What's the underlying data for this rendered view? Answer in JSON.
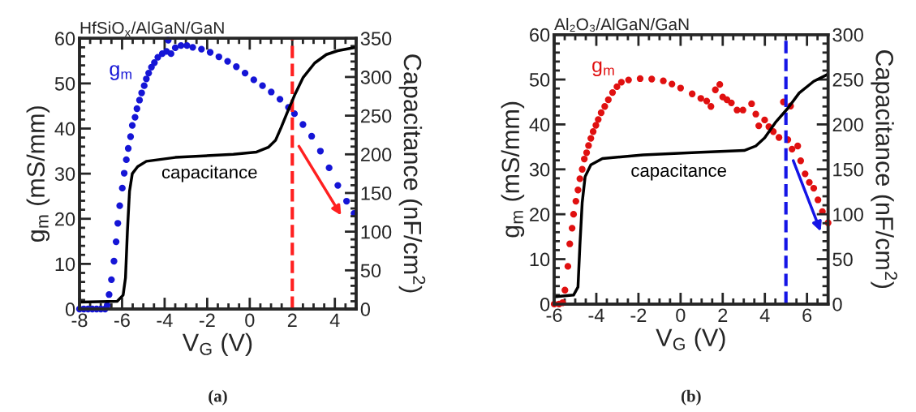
{
  "chart_data": [
    {
      "type": "scatter",
      "title": "HfSiO$_{x}$/AlGaN/GaN",
      "xlabel": "V$_{G}$ (V)",
      "ylabel": "g$_{m}$ (mS/mm)",
      "y2label": "Capacitance (nF/cm$^{2}$)",
      "xlim": [
        -8,
        5
      ],
      "xticks": [
        -8,
        -6,
        -4,
        -2,
        0,
        2,
        4
      ],
      "ylim": [
        0,
        60
      ],
      "yticks": [
        0,
        10,
        20,
        30,
        40,
        50,
        60
      ],
      "y2lim": [
        0,
        350
      ],
      "y2ticks": [
        0,
        50,
        100,
        150,
        200,
        250,
        300,
        350
      ],
      "series": [
        {
          "name": "g$_{m}$",
          "color": "#1515d6",
          "marker": "circle",
          "x": [
            -8,
            -7.8,
            -7.6,
            -7.4,
            -7.2,
            -7.0,
            -6.8,
            -6.7,
            -6.61,
            -6.5,
            -6.38,
            -6.28,
            -6.2,
            -6.11,
            -5.99,
            -5.9,
            -5.8,
            -5.71,
            -5.6,
            -5.52,
            -5.39,
            -5.3,
            -5.18,
            -5.08,
            -4.96,
            -4.86,
            -4.75,
            -4.62,
            -4.48,
            -4.32,
            -4.11,
            -3.91,
            -3.83,
            -3.7,
            -3.5,
            -3.23,
            -2.95,
            -2.68,
            -2.27,
            -1.86,
            -1.45,
            -1.04,
            -0.63,
            -0.22,
            0.19,
            0.6,
            1.01,
            1.42,
            1.82,
            2.1,
            2.5,
            2.91,
            3.32,
            3.73,
            4.14,
            4.55,
            4.9
          ],
          "values": [
            0,
            0,
            0,
            0,
            0,
            0,
            0,
            0.8,
            3.2,
            6.5,
            10.6,
            14.9,
            19,
            22.9,
            26.8,
            30.1,
            33.1,
            35.6,
            38.2,
            40.7,
            42.5,
            44.4,
            46.3,
            47.9,
            49.5,
            51,
            52.3,
            53.6,
            54.6,
            55.8,
            56.6,
            57.1,
            59.6,
            56.6,
            57.9,
            58.4,
            58.4,
            58,
            57.6,
            56.9,
            55.9,
            54.9,
            53.7,
            52.3,
            50.8,
            49.5,
            48.1,
            46.5,
            44.7,
            43.3,
            40.9,
            38.3,
            35,
            31.3,
            27.4,
            23.9,
            21.2
          ]
        },
        {
          "name": "capacitance",
          "type": "line",
          "axis": "y2",
          "color": "#000000",
          "line_style": "solid",
          "x": [
            -8,
            -6.23,
            -5.95,
            -5.84,
            -5.75,
            -5.65,
            -5.52,
            -5.27,
            -4.86,
            -3.5,
            -0.77,
            0.32,
            0.87,
            1.21,
            1.48,
            1.76,
            2.1,
            2.5,
            3.05,
            3.6,
            4.14,
            4.9,
            5
          ],
          "values": [
            9,
            10,
            18,
            40,
            100,
            152,
            175,
            184,
            191,
            196,
            200,
            203,
            209,
            218,
            235,
            254,
            276,
            299,
            318,
            329,
            334,
            338,
            338
          ]
        }
      ],
      "ref_lines": [
        {
          "axis": "x",
          "value": 2,
          "color": "#ff2020",
          "line_style": "dashed"
        }
      ],
      "annotations": [
        "(a)"
      ]
    },
    {
      "type": "scatter",
      "title": "Al₂O₃/AlGaN/GaN",
      "xlabel": "V$_{G}$ (V)",
      "ylabel": "g$_{m}$ (mS/mm)",
      "y2label": "Capacitance (nF/cm$^{2}$)",
      "xlim": [
        -6,
        7
      ],
      "xticks": [
        -6,
        -4,
        -2,
        0,
        2,
        4,
        6
      ],
      "ylim": [
        0,
        60
      ],
      "yticks": [
        0,
        10,
        20,
        30,
        40,
        50,
        60
      ],
      "y2lim": [
        0,
        300
      ],
      "y2ticks": [
        0,
        50,
        100,
        150,
        200,
        250,
        300
      ],
      "series": [
        {
          "name": "g$_{m}$",
          "color": "#e01010",
          "marker": "circle",
          "x": [
            -6,
            -5.77,
            -5.6,
            -5.49,
            -5.35,
            -5.26,
            -5.15,
            -5.08,
            -4.97,
            -4.87,
            -4.78,
            -4.67,
            -4.57,
            -4.46,
            -4.37,
            -4.26,
            -4.15,
            -4.02,
            -3.91,
            -3.77,
            -3.6,
            -3.43,
            -3.23,
            -3.02,
            -2.81,
            -2.47,
            -1.92,
            -1.37,
            -0.82,
            -0.41,
            0,
            0.55,
            0.96,
            1.24,
            1.44,
            1.65,
            1.86,
            2.0,
            2.2,
            2.41,
            2.68,
            2.96,
            3.37,
            3.57,
            3.71,
            3.99,
            4.19,
            4.4,
            4.67,
            4.88,
            5.09,
            5.22,
            5.29,
            5.56,
            5.7,
            5.91,
            6.11,
            6.32,
            6.52,
            6.73,
            7.0
          ],
          "values": [
            0,
            0,
            0.3,
            3.1,
            8.4,
            13.4,
            16.9,
            20,
            22.9,
            25.4,
            27.9,
            30,
            32.3,
            33.7,
            35.3,
            36.9,
            38.4,
            39.8,
            41.1,
            42.6,
            44,
            45.5,
            47.1,
            48.4,
            49.4,
            49.9,
            50.2,
            50.1,
            49.7,
            49,
            48.1,
            46.8,
            45.8,
            45.2,
            44,
            47.7,
            48.9,
            46.1,
            45.5,
            44.8,
            43.2,
            43.2,
            44.6,
            42.3,
            39.7,
            41,
            39.5,
            38.4,
            37.1,
            45,
            36.6,
            44.1,
            34.5,
            35.2,
            31.9,
            29,
            27.1,
            25.8,
            23.2,
            20.6,
            18.1
          ]
        },
        {
          "name": "capacitance",
          "type": "line",
          "axis": "y2",
          "color": "#000000",
          "line_style": "solid",
          "x": [
            -6,
            -5.08,
            -4.87,
            -4.78,
            -4.67,
            -4.53,
            -4.26,
            -3.71,
            -1.78,
            0.96,
            3.02,
            3.57,
            3.99,
            4.53,
            5.09,
            5.63,
            6.32,
            7
          ],
          "values": [
            8,
            10,
            19,
            65,
            113,
            142,
            155,
            162,
            166,
            169,
            171,
            176,
            185,
            203,
            218,
            235,
            248,
            256
          ]
        }
      ],
      "ref_lines": [
        {
          "axis": "x",
          "value": 5,
          "color": "#1515e6",
          "line_style": "dashed"
        }
      ],
      "annotations": [
        "(b)"
      ]
    }
  ]
}
